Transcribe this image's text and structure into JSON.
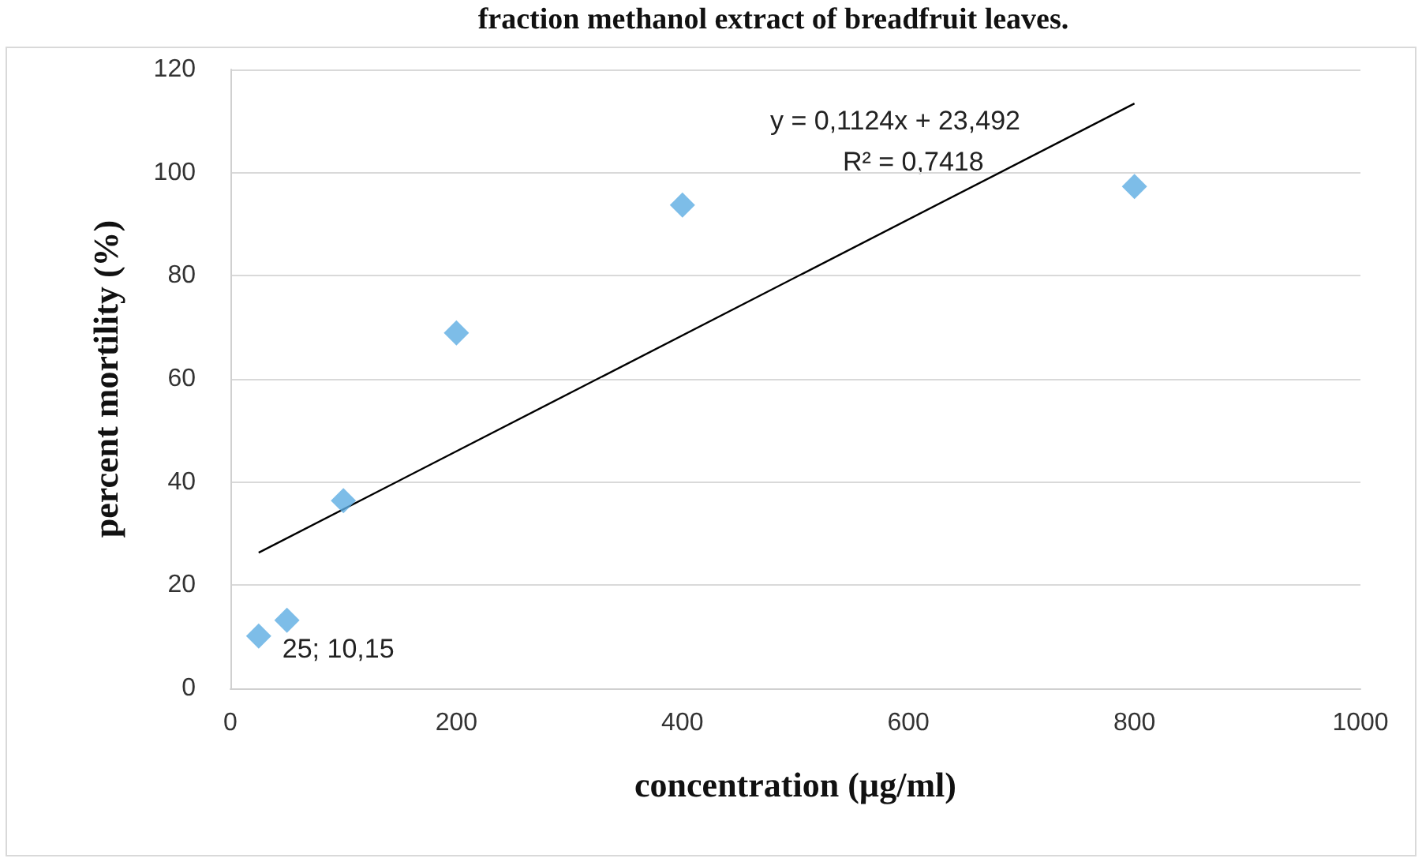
{
  "chart_data": {
    "type": "scatter",
    "title": "fraction methanol extract of breadfruit leaves.",
    "xlabel": "concentration (µg/ml)",
    "ylabel": "percent mortility (%)",
    "series": [
      {
        "color": "#5dade2",
        "x": [
          25,
          50,
          100,
          200,
          400,
          800
        ],
        "values": [
          10.15,
          13.2,
          36.4,
          68.9,
          93.7,
          97.3
        ]
      },
      {
        "type": "line",
        "color": "#000000",
        "marker": "none",
        "x": [
          25,
          800
        ],
        "values": [
          26.3,
          113.4
        ]
      }
    ],
    "annotations": [
      "y = 0,1124x + 23,492",
      "R² = 0,7418",
      {
        "text": "25; 10,15",
        "x": 25,
        "y": 10.15
      }
    ],
    "xlim": [
      0,
      1000
    ],
    "xticks": [
      0,
      200,
      400,
      600,
      800,
      1000
    ],
    "ylim": [
      0,
      120
    ],
    "yticks": [
      0,
      20,
      40,
      60,
      80,
      100,
      120
    ],
    "grid": "y",
    "marker": "diamond"
  }
}
